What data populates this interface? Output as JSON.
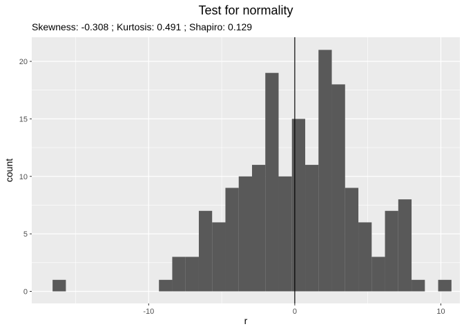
{
  "chart_data": {
    "type": "bar",
    "title": "Test for normality",
    "subtitle": "Skewness: -0.308 ; Kurtosis: 0.491 ; Shapiro: 0.129",
    "xlabel": "r",
    "ylabel": "count",
    "xlim": [
      -18,
      11.3
    ],
    "ylim": [
      -1.05,
      22.1
    ],
    "x_ticks": [
      -10,
      0,
      10
    ],
    "x_tick_labels": [
      "-10",
      "0",
      "10"
    ],
    "y_ticks": [
      0,
      5,
      10,
      15,
      20
    ],
    "y_tick_labels": [
      "0",
      "5",
      "10",
      "15",
      "20"
    ],
    "grid": true,
    "bin_width": 0.91,
    "vline_x": 0,
    "bins": [
      {
        "x": -16.12,
        "count": 1
      },
      {
        "x": -15.21,
        "count": 0
      },
      {
        "x": -14.3,
        "count": 0
      },
      {
        "x": -13.39,
        "count": 0
      },
      {
        "x": -12.48,
        "count": 0
      },
      {
        "x": -11.57,
        "count": 0
      },
      {
        "x": -10.66,
        "count": 0
      },
      {
        "x": -9.75,
        "count": 0
      },
      {
        "x": -8.84,
        "count": 1
      },
      {
        "x": -7.93,
        "count": 3
      },
      {
        "x": -7.02,
        "count": 3
      },
      {
        "x": -6.11,
        "count": 7
      },
      {
        "x": -5.2,
        "count": 6
      },
      {
        "x": -4.29,
        "count": 9
      },
      {
        "x": -3.38,
        "count": 10
      },
      {
        "x": -2.47,
        "count": 11
      },
      {
        "x": -1.56,
        "count": 19
      },
      {
        "x": -0.65,
        "count": 10
      },
      {
        "x": 0.26,
        "count": 15
      },
      {
        "x": 1.17,
        "count": 11
      },
      {
        "x": 2.08,
        "count": 21
      },
      {
        "x": 2.99,
        "count": 18
      },
      {
        "x": 3.9,
        "count": 9
      },
      {
        "x": 4.81,
        "count": 6
      },
      {
        "x": 5.72,
        "count": 3
      },
      {
        "x": 6.63,
        "count": 7
      },
      {
        "x": 7.54,
        "count": 8
      },
      {
        "x": 8.45,
        "count": 1
      },
      {
        "x": 9.36,
        "count": 0
      },
      {
        "x": 10.27,
        "count": 1
      }
    ],
    "colors": {
      "panel": "#ebebeb",
      "grid_major": "#ffffff",
      "bar": "#595959",
      "vline": "#000000"
    }
  }
}
